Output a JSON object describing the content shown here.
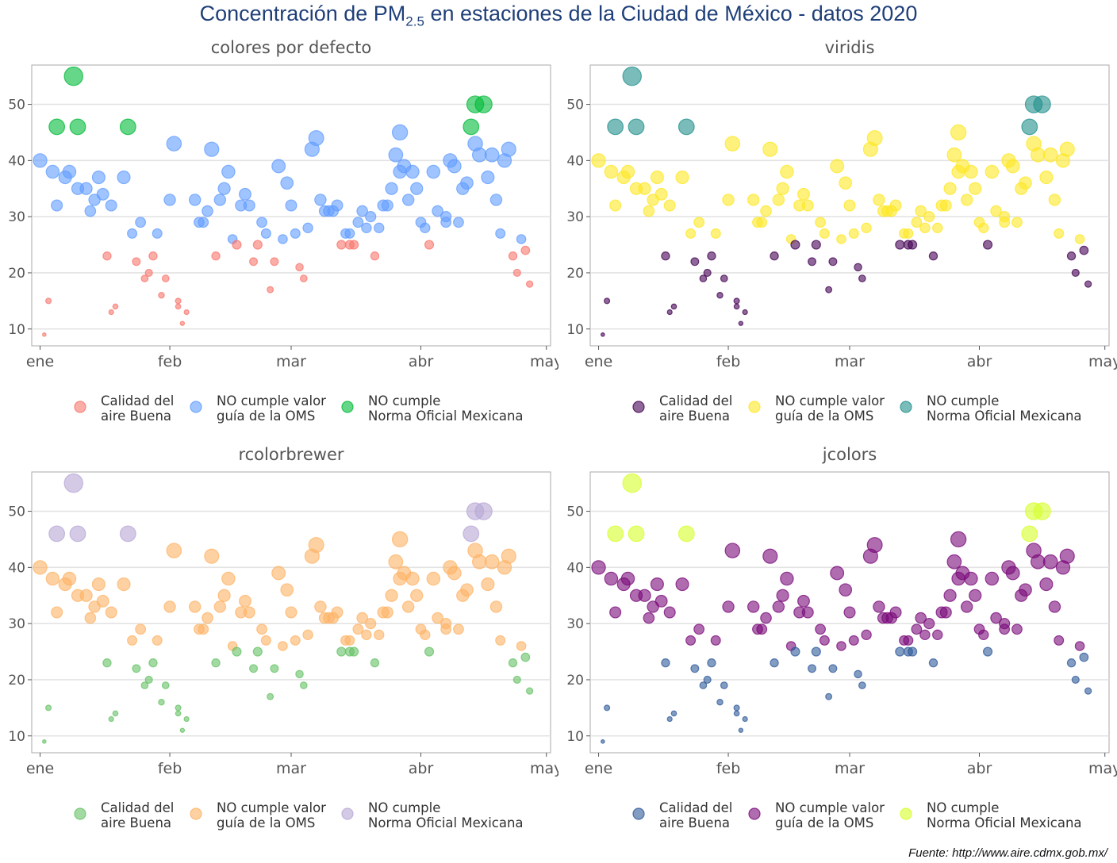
{
  "title": {
    "prefix": "Concentración de PM",
    "subscript": "2.5",
    "suffix": " en estaciones de la Ciudad de México - datos 2020"
  },
  "source": "Fuente: http://www.aire.cdmx.gob.mx/",
  "chart_data": [
    {
      "type": "scatter",
      "title": "colores por defecto",
      "palette": [
        "#F8766D",
        "#619CFF",
        "#00BA38"
      ],
      "categories": [
        "Calidad del aire Buena",
        "NO cumple valor guía de la OMS",
        "NO cumple Norma Oficial Mexicana"
      ],
      "x_ticks": [
        "ene",
        "feb",
        "mar",
        "abr",
        "may"
      ],
      "y_ticks": [
        10,
        20,
        30,
        40,
        50
      ],
      "ylim": [
        7,
        57
      ],
      "grid": true,
      "legend_position": "bottom"
    },
    {
      "type": "scatter",
      "title": "viridis",
      "palette": [
        "#440154",
        "#FDE725",
        "#21908C"
      ],
      "categories": [
        "Calidad del aire Buena",
        "NO cumple valor guía de la OMS",
        "NO cumple Norma Oficial Mexicana"
      ],
      "x_ticks": [
        "ene",
        "feb",
        "mar",
        "abr",
        "may"
      ],
      "y_ticks": [
        10,
        20,
        30,
        40,
        50
      ],
      "ylim": [
        7,
        57
      ],
      "grid": true,
      "legend_position": "bottom"
    },
    {
      "type": "scatter",
      "title": "rcolorbrewer",
      "palette": [
        "#66C266",
        "#FDB366",
        "#B7A7D6"
      ],
      "categories": [
        "Calidad del aire Buena",
        "NO cumple valor guía de la OMS",
        "NO cumple Norma Oficial Mexicana"
      ],
      "x_ticks": [
        "ene",
        "feb",
        "mar",
        "abr",
        "may"
      ],
      "y_ticks": [
        10,
        20,
        30,
        40,
        50
      ],
      "ylim": [
        7,
        57
      ],
      "grid": true,
      "legend_position": "bottom"
    },
    {
      "type": "scatter",
      "title": "jcolors",
      "palette": [
        "#2E5A9A",
        "#7A0A7A",
        "#D5FF2A"
      ],
      "categories": [
        "Calidad del aire Buena",
        "NO cumple valor guía de la OMS",
        "NO cumple Norma Oficial Mexicana"
      ],
      "x_ticks": [
        "ene",
        "feb",
        "mar",
        "abr",
        "may"
      ],
      "y_ticks": [
        10,
        20,
        30,
        40,
        50
      ],
      "ylim": [
        7,
        57
      ],
      "grid": true,
      "legend_position": "bottom"
    }
  ],
  "series": [
    {
      "x": "2020-01-01",
      "y": 40
    },
    {
      "x": "2020-01-02",
      "y": 9
    },
    {
      "x": "2020-01-03",
      "y": 15
    },
    {
      "x": "2020-01-04",
      "y": 38
    },
    {
      "x": "2020-01-05",
      "y": 46
    },
    {
      "x": "2020-01-05",
      "y": 32
    },
    {
      "x": "2020-01-07",
      "y": 37
    },
    {
      "x": "2020-01-08",
      "y": 38
    },
    {
      "x": "2020-01-09",
      "y": 55
    },
    {
      "x": "2020-01-10",
      "y": 35
    },
    {
      "x": "2020-01-10",
      "y": 46
    },
    {
      "x": "2020-01-12",
      "y": 35
    },
    {
      "x": "2020-01-13",
      "y": 31
    },
    {
      "x": "2020-01-14",
      "y": 33
    },
    {
      "x": "2020-01-15",
      "y": 37
    },
    {
      "x": "2020-01-16",
      "y": 34
    },
    {
      "x": "2020-01-17",
      "y": 23
    },
    {
      "x": "2020-01-18",
      "y": 32
    },
    {
      "x": "2020-01-18",
      "y": 13
    },
    {
      "x": "2020-01-19",
      "y": 14
    },
    {
      "x": "2020-01-21",
      "y": 37
    },
    {
      "x": "2020-01-22",
      "y": 46
    },
    {
      "x": "2020-01-23",
      "y": 27
    },
    {
      "x": "2020-01-24",
      "y": 22
    },
    {
      "x": "2020-01-25",
      "y": 29
    },
    {
      "x": "2020-01-26",
      "y": 19
    },
    {
      "x": "2020-01-27",
      "y": 20
    },
    {
      "x": "2020-01-28",
      "y": 23
    },
    {
      "x": "2020-01-29",
      "y": 27
    },
    {
      "x": "2020-01-30",
      "y": 16
    },
    {
      "x": "2020-01-31",
      "y": 19
    },
    {
      "x": "2020-02-01",
      "y": 33
    },
    {
      "x": "2020-02-02",
      "y": 43
    },
    {
      "x": "2020-02-03",
      "y": 15
    },
    {
      "x": "2020-02-03",
      "y": 14
    },
    {
      "x": "2020-02-04",
      "y": 11
    },
    {
      "x": "2020-02-05",
      "y": 13
    },
    {
      "x": "2020-02-07",
      "y": 33
    },
    {
      "x": "2020-02-08",
      "y": 29
    },
    {
      "x": "2020-02-09",
      "y": 29
    },
    {
      "x": "2020-02-10",
      "y": 31
    },
    {
      "x": "2020-02-11",
      "y": 42
    },
    {
      "x": "2020-02-12",
      "y": 23
    },
    {
      "x": "2020-02-13",
      "y": 33
    },
    {
      "x": "2020-02-14",
      "y": 35
    },
    {
      "x": "2020-02-15",
      "y": 38
    },
    {
      "x": "2020-02-16",
      "y": 26
    },
    {
      "x": "2020-02-17",
      "y": 25
    },
    {
      "x": "2020-02-18",
      "y": 32
    },
    {
      "x": "2020-02-19",
      "y": 34
    },
    {
      "x": "2020-02-20",
      "y": 32
    },
    {
      "x": "2020-02-21",
      "y": 22
    },
    {
      "x": "2020-02-22",
      "y": 25
    },
    {
      "x": "2020-02-23",
      "y": 29
    },
    {
      "x": "2020-02-24",
      "y": 27
    },
    {
      "x": "2020-02-25",
      "y": 17
    },
    {
      "x": "2020-02-26",
      "y": 22
    },
    {
      "x": "2020-02-27",
      "y": 39
    },
    {
      "x": "2020-02-28",
      "y": 26
    },
    {
      "x": "2020-02-29",
      "y": 36
    },
    {
      "x": "2020-03-01",
      "y": 32
    },
    {
      "x": "2020-03-02",
      "y": 27
    },
    {
      "x": "2020-03-03",
      "y": 21
    },
    {
      "x": "2020-03-04",
      "y": 19
    },
    {
      "x": "2020-03-05",
      "y": 28
    },
    {
      "x": "2020-03-06",
      "y": 42
    },
    {
      "x": "2020-03-07",
      "y": 44
    },
    {
      "x": "2020-03-08",
      "y": 33
    },
    {
      "x": "2020-03-09",
      "y": 31
    },
    {
      "x": "2020-03-10",
      "y": 31
    },
    {
      "x": "2020-03-11",
      "y": 31
    },
    {
      "x": "2020-03-12",
      "y": 32
    },
    {
      "x": "2020-03-13",
      "y": 25
    },
    {
      "x": "2020-03-14",
      "y": 27
    },
    {
      "x": "2020-03-15",
      "y": 27
    },
    {
      "x": "2020-03-15",
      "y": 25
    },
    {
      "x": "2020-03-16",
      "y": 25
    },
    {
      "x": "2020-03-17",
      "y": 29
    },
    {
      "x": "2020-03-18",
      "y": 31
    },
    {
      "x": "2020-03-19",
      "y": 28
    },
    {
      "x": "2020-03-20",
      "y": 30
    },
    {
      "x": "2020-03-21",
      "y": 23
    },
    {
      "x": "2020-03-22",
      "y": 28
    },
    {
      "x": "2020-03-23",
      "y": 32
    },
    {
      "x": "2020-03-24",
      "y": 32
    },
    {
      "x": "2020-03-25",
      "y": 35
    },
    {
      "x": "2020-03-26",
      "y": 41
    },
    {
      "x": "2020-03-27",
      "y": 45
    },
    {
      "x": "2020-03-27",
      "y": 38
    },
    {
      "x": "2020-03-28",
      "y": 39
    },
    {
      "x": "2020-03-29",
      "y": 33
    },
    {
      "x": "2020-03-30",
      "y": 38
    },
    {
      "x": "2020-03-31",
      "y": 35
    },
    {
      "x": "2020-04-01",
      "y": 29
    },
    {
      "x": "2020-04-02",
      "y": 28
    },
    {
      "x": "2020-04-03",
      "y": 25
    },
    {
      "x": "2020-04-04",
      "y": 38
    },
    {
      "x": "2020-04-05",
      "y": 31
    },
    {
      "x": "2020-04-07",
      "y": 29
    },
    {
      "x": "2020-04-07",
      "y": 30
    },
    {
      "x": "2020-04-08",
      "y": 40
    },
    {
      "x": "2020-04-09",
      "y": 39
    },
    {
      "x": "2020-04-10",
      "y": 29
    },
    {
      "x": "2020-04-11",
      "y": 35
    },
    {
      "x": "2020-04-12",
      "y": 36
    },
    {
      "x": "2020-04-13",
      "y": 46
    },
    {
      "x": "2020-04-14",
      "y": 43
    },
    {
      "x": "2020-04-14",
      "y": 50
    },
    {
      "x": "2020-04-15",
      "y": 41
    },
    {
      "x": "2020-04-16",
      "y": 50
    },
    {
      "x": "2020-04-17",
      "y": 37
    },
    {
      "x": "2020-04-18",
      "y": 41
    },
    {
      "x": "2020-04-19",
      "y": 33
    },
    {
      "x": "2020-04-20",
      "y": 27
    },
    {
      "x": "2020-04-21",
      "y": 40
    },
    {
      "x": "2020-04-22",
      "y": 42
    },
    {
      "x": "2020-04-23",
      "y": 23
    },
    {
      "x": "2020-04-24",
      "y": 20
    },
    {
      "x": "2020-04-25",
      "y": 26
    },
    {
      "x": "2020-04-26",
      "y": 24
    },
    {
      "x": "2020-04-27",
      "y": 18
    }
  ]
}
